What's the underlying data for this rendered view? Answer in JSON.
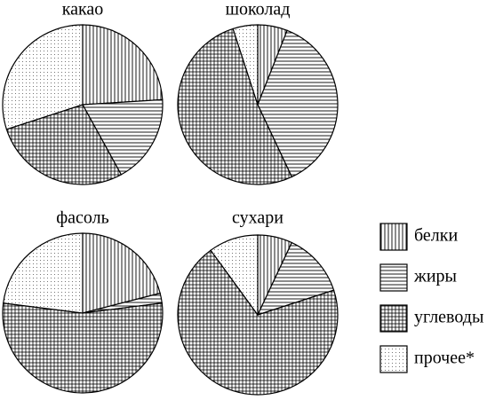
{
  "chart_data": [
    {
      "type": "pie",
      "title": "какао",
      "categories": [
        "белки",
        "жиры",
        "углеводы",
        "прочее*"
      ],
      "values": [
        24,
        18,
        28,
        30
      ],
      "patterns": [
        "vertical",
        "horizontal",
        "grid",
        "dots"
      ]
    },
    {
      "type": "pie",
      "title": "шоколад",
      "categories": [
        "белки",
        "жиры",
        "углеводы",
        "прочее*"
      ],
      "values": [
        6,
        37,
        52,
        5
      ],
      "patterns": [
        "vertical",
        "horizontal",
        "grid",
        "dots"
      ]
    },
    {
      "type": "pie",
      "title": "фасоль",
      "categories": [
        "белки",
        "жиры",
        "углеводы",
        "прочее*"
      ],
      "values": [
        21,
        2,
        54,
        23
      ],
      "patterns": [
        "vertical",
        "horizontal",
        "grid",
        "dots"
      ]
    },
    {
      "type": "pie",
      "title": "сухари",
      "categories": [
        "белки",
        "жиры",
        "углеводы",
        "прочее*"
      ],
      "values": [
        7,
        13,
        70,
        10
      ],
      "patterns": [
        "vertical",
        "horizontal",
        "grid",
        "dots"
      ]
    }
  ]
}
